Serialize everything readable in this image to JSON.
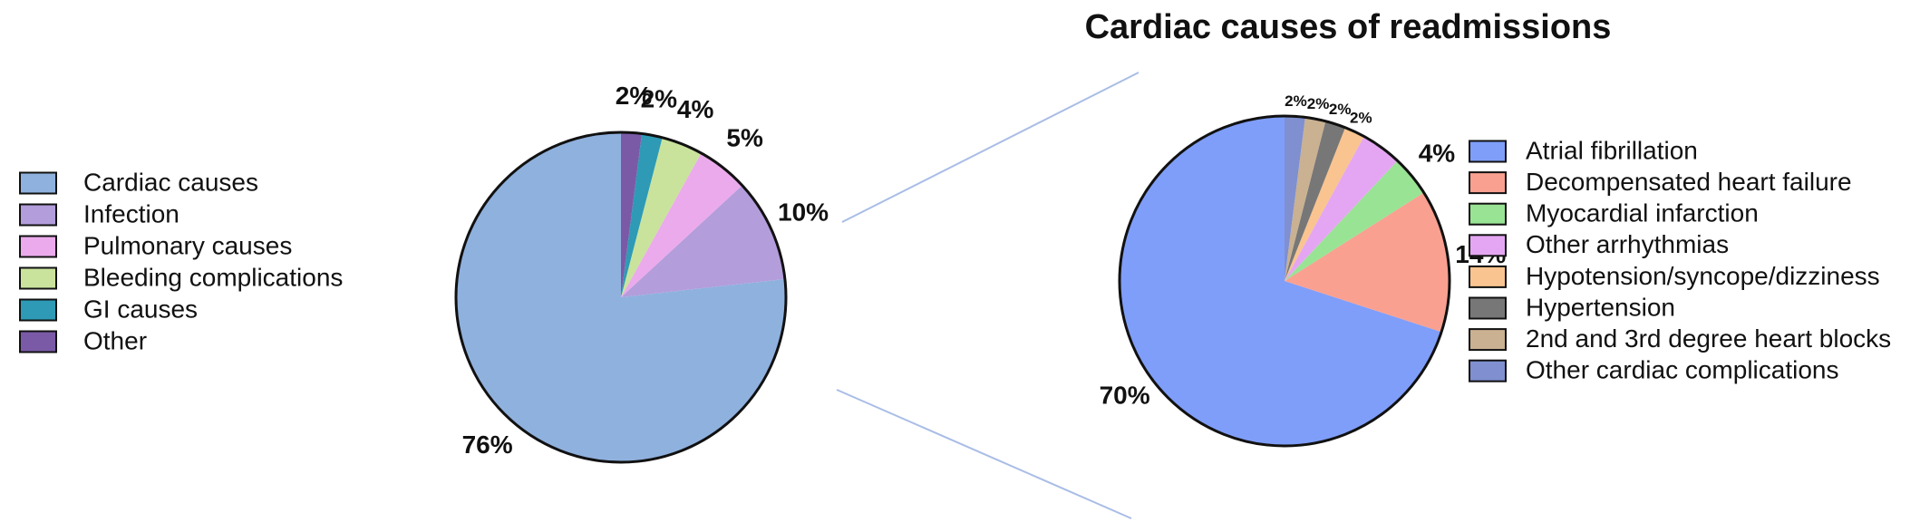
{
  "chart_data": [
    {
      "type": "pie",
      "title": "",
      "categories": [
        "Cardiac causes",
        "Infection",
        "Pulmonary causes",
        "Bleeding complications",
        "GI causes",
        "Other"
      ],
      "values": [
        76,
        10,
        5,
        4,
        2,
        2
      ],
      "value_labels": [
        "76%",
        "10%",
        "5%",
        "4%",
        "2%",
        "2%"
      ],
      "colors": [
        "#8fb1de",
        "#b39ddb",
        "#ebaaeb",
        "#c9e39d",
        "#2e9ab6",
        "#7a5aa6"
      ],
      "legend_position": "left",
      "start_angle_deg": 0,
      "direction": "counterclockwise-from-top"
    },
    {
      "type": "pie",
      "title": "Cardiac causes of readmissions",
      "categories": [
        "Atrial fibrillation",
        "Decompensated heart failure",
        "Myocardial infarction",
        "Other arrhythmias",
        "Hypotension/syncope/dizziness",
        "Hypertension",
        "2nd and 3rd degree heart blocks",
        "Other cardiac complications"
      ],
      "values": [
        70,
        14,
        4,
        4,
        2,
        2,
        2,
        2
      ],
      "value_labels": [
        "70%",
        "14%",
        "4%",
        "",
        "2%",
        "2%",
        "2%",
        "2%"
      ],
      "colors": [
        "#7f9ef9",
        "#f9a091",
        "#99e394",
        "#e4a6f2",
        "#f9c48f",
        "#777777",
        "#c9b191",
        "#7f8fcf"
      ],
      "legend_position": "right",
      "start_angle_deg": 0,
      "direction": "counterclockwise-from-top"
    }
  ],
  "connector_color": "#a9bde6"
}
